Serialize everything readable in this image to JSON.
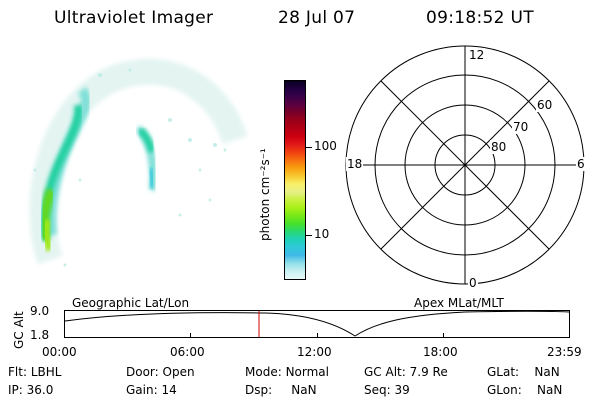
{
  "header": {
    "title": "Ultraviolet Imager",
    "date": "28 Jul 07",
    "time": "09:18:52 UT"
  },
  "colorbar": {
    "label": "photon cm⁻²s⁻¹",
    "ticks": [
      "100",
      "10"
    ],
    "colors": [
      "#0a0020",
      "#200040",
      "#3a0048",
      "#5a0040",
      "#7a0028",
      "#9a001a",
      "#b40014",
      "#cc0010",
      "#e01818",
      "#f04010",
      "#f87010",
      "#f8a010",
      "#f8c830",
      "#f8f068",
      "#e8f088",
      "#c8f040",
      "#a8f018",
      "#78e818",
      "#48e028",
      "#28d870",
      "#20d0b8",
      "#30c8d8",
      "#40b8e8",
      "#90e0e8",
      "#c8f0f0",
      "#e8f8f8"
    ],
    "accent": "#c80000"
  },
  "polar": {
    "labels": {
      "top": "12",
      "bottom": "0",
      "left": "18",
      "right": "6"
    },
    "rings": [
      "60",
      "70",
      "80"
    ]
  },
  "timeline": {
    "left_label": "Geographic Lat/Lon",
    "right_label": "Apex MLat/MLT",
    "axis_title": "GC Alt",
    "y_max": "9.0",
    "y_min": "1.8",
    "times": [
      "00:00",
      "06:00",
      "12:00",
      "18:00",
      "23:59"
    ],
    "current_marker_color": "#d00000"
  },
  "info": {
    "row1": [
      {
        "label": "Flt:",
        "value": "LBHL"
      },
      {
        "label": "Door:",
        "value": "Open"
      },
      {
        "label": "Mode:",
        "value": "Normal"
      },
      {
        "label": "GC Alt:",
        "value": "7.9 Re"
      },
      {
        "label": "GLat:",
        "value": "NaN"
      }
    ],
    "row2": [
      {
        "label": "IP:",
        "value": "36.0"
      },
      {
        "label": "Gain:",
        "value": "14"
      },
      {
        "label": "Dsp:",
        "value": "NaN"
      },
      {
        "label": "Seq:",
        "value": "39"
      },
      {
        "label": "GLon:",
        "value": "NaN"
      }
    ]
  }
}
